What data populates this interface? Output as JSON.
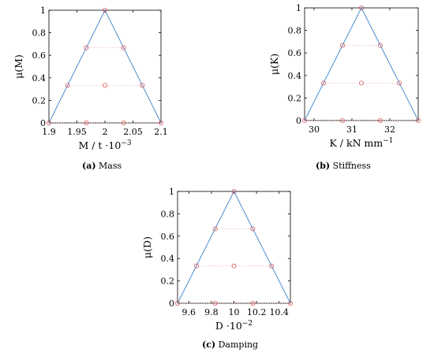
{
  "colors": {
    "membership_line": "#4d8fd1",
    "alpha_cut_points": "#e05a5a",
    "alpha_cut_dotted": "#f0a0a0",
    "axes": "#000000"
  },
  "chart_data": [
    {
      "type": "line",
      "caption_prefix": "(a)",
      "caption": "Mass",
      "xlabel": "M / t ·10",
      "xlabel_exp": "−3",
      "ylabel": "μ(M)",
      "xlim": [
        1.9,
        2.1
      ],
      "ylim": [
        0,
        1
      ],
      "xticks": [
        1.9,
        1.95,
        2,
        2.05,
        2.1
      ],
      "xtick_labels": [
        "1.9",
        "1.95",
        "2",
        "2.05",
        "2.1"
      ],
      "yticks": [
        0,
        0.2,
        0.4,
        0.6,
        0.8,
        1
      ],
      "ytick_labels": [
        "0",
        "0.2",
        "0.4",
        "0.6",
        "0.8",
        "1"
      ],
      "grid": false,
      "membership_function": {
        "x": [
          1.9,
          2.0,
          2.1
        ],
        "y": [
          0,
          1,
          0
        ]
      },
      "alpha_cuts": [
        {
          "mu": 0,
          "x": [
            1.9,
            1.9667,
            2.0333,
            2.1
          ]
        },
        {
          "mu": 0.3333,
          "x": [
            1.9333,
            2.0,
            2.0667
          ]
        },
        {
          "mu": 0.6667,
          "x": [
            1.9667,
            2.0333
          ]
        },
        {
          "mu": 1,
          "x": [
            2.0
          ]
        }
      ]
    },
    {
      "type": "line",
      "caption_prefix": "(b)",
      "caption": "Stiffness",
      "xlabel": "K / kN mm",
      "xlabel_exp": "−1",
      "ylabel": "μ(K)",
      "xlim": [
        29.75,
        32.75
      ],
      "ylim": [
        0,
        1
      ],
      "xticks": [
        30,
        31,
        32
      ],
      "xtick_labels": [
        "30",
        "31",
        "32"
      ],
      "yticks": [
        0,
        0.2,
        0.4,
        0.6,
        0.8,
        1
      ],
      "ytick_labels": [
        "0",
        "0.2",
        "0.4",
        "0.6",
        "0.8",
        "1"
      ],
      "grid": false,
      "membership_function": {
        "x": [
          29.75,
          31.25,
          32.75
        ],
        "y": [
          0,
          1,
          0
        ]
      },
      "alpha_cuts": [
        {
          "mu": 0,
          "x": [
            29.75,
            30.75,
            31.75,
            32.75
          ]
        },
        {
          "mu": 0.3333,
          "x": [
            30.25,
            31.25,
            32.25
          ]
        },
        {
          "mu": 0.6667,
          "x": [
            30.75,
            31.75
          ]
        },
        {
          "mu": 1,
          "x": [
            31.25
          ]
        }
      ]
    },
    {
      "type": "line",
      "caption_prefix": "(c)",
      "caption": "Damping",
      "xlabel": "D  ·10",
      "xlabel_exp": "−2",
      "ylabel": "μ(D)",
      "xlim": [
        9.5,
        10.5
      ],
      "ylim": [
        0,
        1
      ],
      "xticks": [
        9.6,
        9.8,
        10,
        10.2,
        10.4
      ],
      "xtick_labels": [
        "9.6",
        "9.8",
        "10",
        "10.2",
        "10.4"
      ],
      "yticks": [
        0,
        0.2,
        0.4,
        0.6,
        0.8,
        1
      ],
      "ytick_labels": [
        "0",
        "0.2",
        "0.4",
        "0.6",
        "0.8",
        "1"
      ],
      "grid": false,
      "membership_function": {
        "x": [
          9.5,
          10.0,
          10.5
        ],
        "y": [
          0,
          1,
          0
        ]
      },
      "alpha_cuts": [
        {
          "mu": 0,
          "x": [
            9.5,
            9.8333,
            10.1667,
            10.5
          ]
        },
        {
          "mu": 0.3333,
          "x": [
            9.6667,
            10.0,
            10.3333
          ]
        },
        {
          "mu": 0.6667,
          "x": [
            9.8333,
            10.1667
          ]
        },
        {
          "mu": 1,
          "x": [
            10.0
          ]
        }
      ]
    }
  ]
}
